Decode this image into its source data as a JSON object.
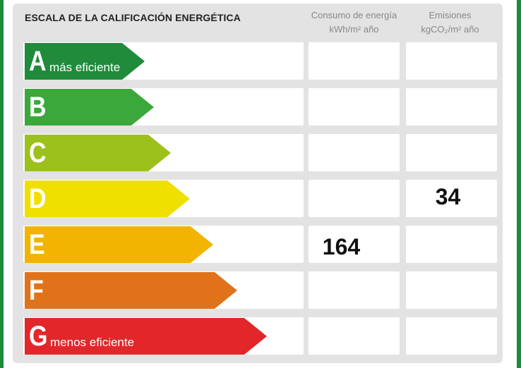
{
  "title": "ESCALA DE LA CALIFICACIÓN ENERGÉTICA",
  "columns": {
    "consumo": {
      "line1": "Consumo de energía",
      "line2": "kWh/m² año"
    },
    "emisiones": {
      "line1": "Emisiones",
      "line2": "kgCO₂/m² año"
    }
  },
  "ratings": [
    {
      "letter": "A",
      "label": "más eficiente",
      "color": "#1f8b3b"
    },
    {
      "letter": "B",
      "label": "",
      "color": "#3aa83a"
    },
    {
      "letter": "C",
      "label": "",
      "color": "#9dc11c"
    },
    {
      "letter": "D",
      "label": "",
      "color": "#f0e000"
    },
    {
      "letter": "E",
      "label": "",
      "color": "#f2b400"
    },
    {
      "letter": "F",
      "label": "",
      "color": "#e0731a"
    },
    {
      "letter": "G",
      "label": "menos eficiente",
      "color": "#e3262a"
    }
  ],
  "values": {
    "consumo": {
      "rating": "E",
      "value": "164"
    },
    "emisiones": {
      "rating": "D",
      "value": "34"
    }
  }
}
